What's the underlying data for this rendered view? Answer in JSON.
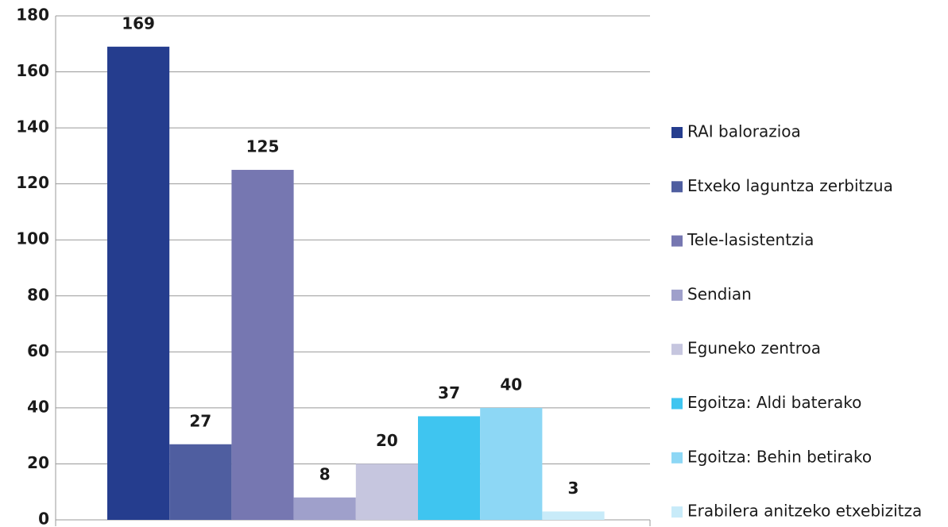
{
  "chart_data": {
    "type": "bar",
    "series": [
      {
        "name": "RAI balorazioa",
        "color": "#253d8e",
        "values": [
          169
        ]
      },
      {
        "name": "Etxeko laguntza zerbitzua",
        "color": "#4f5ea0",
        "values": [
          27
        ]
      },
      {
        "name": "Tele-lasistentzia",
        "color": "#7677b1",
        "values": [
          125
        ]
      },
      {
        "name": "Sendian",
        "color": "#9fa0cb",
        "values": [
          8
        ]
      },
      {
        "name": "Eguneko zentroa",
        "color": "#c6c6df",
        "values": [
          20
        ]
      },
      {
        "name": "Egoitza: Aldi baterako",
        "color": "#3fc5f0",
        "values": [
          37
        ]
      },
      {
        "name": "Egoitza: Behin betirako",
        "color": "#8dd7f5",
        "values": [
          40
        ]
      },
      {
        "name": "Erabilera anitzeko etxebizitza",
        "color": "#c8ebf9",
        "values": [
          3
        ]
      }
    ],
    "ylim": [
      0,
      180
    ],
    "yticks": [
      0,
      20,
      40,
      60,
      80,
      100,
      120,
      140,
      160,
      180
    ],
    "grid": true,
    "legend": "right"
  }
}
